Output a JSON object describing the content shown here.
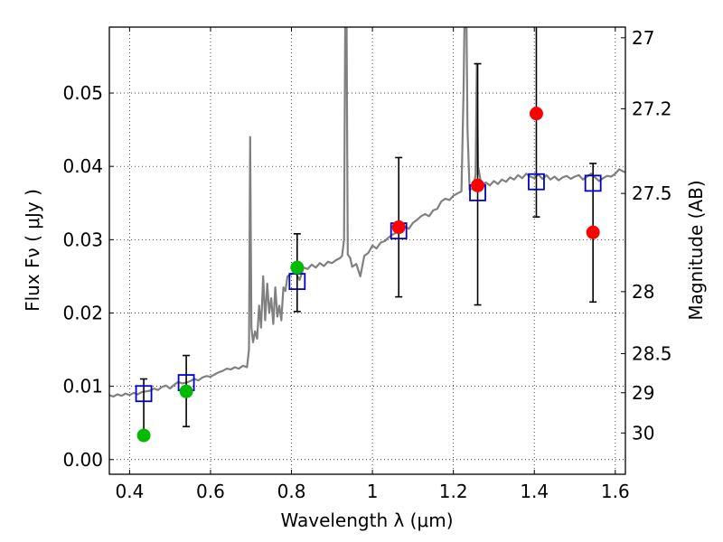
{
  "chart_data": {
    "type": "scatter",
    "title": "",
    "xlabel": "Wavelength  λ (μm)",
    "ylabel": "Flux  Fν  ( μJy )",
    "ylabel_right": "Magnitude (AB)",
    "xlim": [
      0.35,
      1.625
    ],
    "ylim": [
      -0.002,
      0.059
    ],
    "grid": true,
    "x_ticks": [
      {
        "value": 0.4,
        "label": "0.4"
      },
      {
        "value": 0.6,
        "label": "0.6"
      },
      {
        "value": 0.8,
        "label": "0.8"
      },
      {
        "value": 1.0,
        "label": "1"
      },
      {
        "value": 1.2,
        "label": "1.2"
      },
      {
        "value": 1.4,
        "label": "1.4"
      },
      {
        "value": 1.6,
        "label": "1.6"
      }
    ],
    "y_ticks": [
      {
        "value": 0.0,
        "label": "0.00"
      },
      {
        "value": 0.01,
        "label": "0.01"
      },
      {
        "value": 0.02,
        "label": "0.02"
      },
      {
        "value": 0.03,
        "label": "0.03"
      },
      {
        "value": 0.04,
        "label": "0.04"
      },
      {
        "value": 0.05,
        "label": "0.05"
      }
    ],
    "y2_ticks": [
      {
        "value": 27,
        "label": "27"
      },
      {
        "value": 27.2,
        "label": "27.2"
      },
      {
        "value": 27.5,
        "label": "27.5"
      },
      {
        "value": 28,
        "label": "28"
      },
      {
        "value": 28.5,
        "label": "28.5"
      },
      {
        "value": 29,
        "label": "29"
      },
      {
        "value": 30,
        "label": "30"
      }
    ],
    "model_spectrum": {
      "color": "#808080",
      "points": [
        [
          0.35,
          0.0088
        ],
        [
          0.36,
          0.0086
        ],
        [
          0.37,
          0.0089
        ],
        [
          0.38,
          0.0087
        ],
        [
          0.39,
          0.009
        ],
        [
          0.4,
          0.0088
        ],
        [
          0.41,
          0.0091
        ],
        [
          0.42,
          0.0089
        ],
        [
          0.43,
          0.0092
        ],
        [
          0.44,
          0.0093
        ],
        [
          0.45,
          0.0094
        ],
        [
          0.46,
          0.0097
        ],
        [
          0.47,
          0.0095
        ],
        [
          0.48,
          0.0099
        ],
        [
          0.49,
          0.0101
        ],
        [
          0.5,
          0.0097
        ],
        [
          0.51,
          0.0102
        ],
        [
          0.52,
          0.0106
        ],
        [
          0.53,
          0.0104
        ],
        [
          0.54,
          0.0105
        ],
        [
          0.55,
          0.0107
        ],
        [
          0.56,
          0.011
        ],
        [
          0.57,
          0.0108
        ],
        [
          0.58,
          0.0112
        ],
        [
          0.59,
          0.0114
        ],
        [
          0.6,
          0.0113
        ],
        [
          0.61,
          0.0116
        ],
        [
          0.62,
          0.0119
        ],
        [
          0.63,
          0.0121
        ],
        [
          0.64,
          0.0124
        ],
        [
          0.65,
          0.0123
        ],
        [
          0.66,
          0.0126
        ],
        [
          0.67,
          0.0124
        ],
        [
          0.68,
          0.0128
        ],
        [
          0.69,
          0.0126
        ],
        [
          0.695,
          0.015
        ],
        [
          0.698,
          0.044
        ],
        [
          0.701,
          0.018
        ],
        [
          0.705,
          0.016
        ],
        [
          0.71,
          0.0175
        ],
        [
          0.715,
          0.0165
        ],
        [
          0.72,
          0.021
        ],
        [
          0.725,
          0.018
        ],
        [
          0.73,
          0.025
        ],
        [
          0.735,
          0.019
        ],
        [
          0.74,
          0.024
        ],
        [
          0.745,
          0.02
        ],
        [
          0.75,
          0.022
        ],
        [
          0.755,
          0.0185
        ],
        [
          0.76,
          0.0235
        ],
        [
          0.765,
          0.0195
        ],
        [
          0.77,
          0.021
        ],
        [
          0.775,
          0.019
        ],
        [
          0.78,
          0.0235
        ],
        [
          0.785,
          0.023
        ],
        [
          0.79,
          0.025
        ],
        [
          0.8,
          0.0253
        ],
        [
          0.81,
          0.0255
        ],
        [
          0.82,
          0.0245
        ],
        [
          0.83,
          0.0262
        ],
        [
          0.84,
          0.026
        ],
        [
          0.85,
          0.0266
        ],
        [
          0.86,
          0.0262
        ],
        [
          0.87,
          0.0268
        ],
        [
          0.88,
          0.0264
        ],
        [
          0.89,
          0.027
        ],
        [
          0.9,
          0.0268
        ],
        [
          0.91,
          0.0272
        ],
        [
          0.92,
          0.0275
        ],
        [
          0.925,
          0.0278
        ],
        [
          0.93,
          0.03
        ],
        [
          0.933,
          0.062
        ],
        [
          0.936,
          0.062
        ],
        [
          0.939,
          0.028
        ],
        [
          0.945,
          0.0275
        ],
        [
          0.95,
          0.0263
        ],
        [
          0.96,
          0.0267
        ],
        [
          0.97,
          0.025
        ],
        [
          0.98,
          0.0278
        ],
        [
          0.99,
          0.0282
        ],
        [
          1.0,
          0.0292
        ],
        [
          1.01,
          0.0288
        ],
        [
          1.02,
          0.0296
        ],
        [
          1.03,
          0.0298
        ],
        [
          1.04,
          0.0303
        ],
        [
          1.05,
          0.0307
        ],
        [
          1.06,
          0.031
        ],
        [
          1.07,
          0.0314
        ],
        [
          1.08,
          0.0318
        ],
        [
          1.09,
          0.0315
        ],
        [
          1.1,
          0.0323
        ],
        [
          1.11,
          0.0327
        ],
        [
          1.12,
          0.0332
        ],
        [
          1.13,
          0.0335
        ],
        [
          1.14,
          0.0332
        ],
        [
          1.15,
          0.034
        ],
        [
          1.16,
          0.0342
        ],
        [
          1.17,
          0.0352
        ],
        [
          1.18,
          0.0356
        ],
        [
          1.19,
          0.0354
        ],
        [
          1.2,
          0.036
        ],
        [
          1.21,
          0.0363
        ],
        [
          1.22,
          0.0366
        ],
        [
          1.225,
          0.05
        ],
        [
          1.228,
          0.062
        ],
        [
          1.232,
          0.062
        ],
        [
          1.235,
          0.045
        ],
        [
          1.24,
          0.0368
        ],
        [
          1.25,
          0.037
        ],
        [
          1.255,
          0.039
        ],
        [
          1.258,
          0.054
        ],
        [
          1.261,
          0.04
        ],
        [
          1.27,
          0.0372
        ],
        [
          1.28,
          0.0378
        ],
        [
          1.29,
          0.0374
        ],
        [
          1.3,
          0.038
        ],
        [
          1.31,
          0.0376
        ],
        [
          1.32,
          0.0382
        ],
        [
          1.33,
          0.0379
        ],
        [
          1.34,
          0.0385
        ],
        [
          1.35,
          0.0382
        ],
        [
          1.36,
          0.0388
        ],
        [
          1.37,
          0.0384
        ],
        [
          1.38,
          0.039
        ],
        [
          1.39,
          0.0386
        ],
        [
          1.4,
          0.0384
        ],
        [
          1.41,
          0.0389
        ],
        [
          1.42,
          0.0383
        ],
        [
          1.43,
          0.0388
        ],
        [
          1.44,
          0.0382
        ],
        [
          1.45,
          0.0386
        ],
        [
          1.46,
          0.0381
        ],
        [
          1.47,
          0.0385
        ],
        [
          1.48,
          0.0387
        ],
        [
          1.49,
          0.0383
        ],
        [
          1.5,
          0.0386
        ],
        [
          1.51,
          0.0388
        ],
        [
          1.52,
          0.0382
        ],
        [
          1.53,
          0.0386
        ],
        [
          1.54,
          0.039
        ],
        [
          1.55,
          0.0385
        ],
        [
          1.56,
          0.038
        ],
        [
          1.57,
          0.0384
        ],
        [
          1.58,
          0.0387
        ],
        [
          1.59,
          0.0386
        ],
        [
          1.6,
          0.039
        ],
        [
          1.61,
          0.0396
        ],
        [
          1.62,
          0.0393
        ],
        [
          1.625,
          0.0392
        ]
      ]
    },
    "model_photometry": {
      "marker": "open-square",
      "color": "#0000cc",
      "points": [
        {
          "x": 0.435,
          "y": 0.009
        },
        {
          "x": 0.54,
          "y": 0.0105
        },
        {
          "x": 0.814,
          "y": 0.0243
        },
        {
          "x": 1.065,
          "y": 0.0312
        },
        {
          "x": 1.26,
          "y": 0.0364
        },
        {
          "x": 1.405,
          "y": 0.0379
        },
        {
          "x": 1.545,
          "y": 0.0377
        }
      ]
    },
    "observed": [
      {
        "x": 0.435,
        "y": 0.0033,
        "err_low": 0.0033,
        "err_high": 0.011,
        "color": "#00bb00"
      },
      {
        "x": 0.54,
        "y": 0.0093,
        "err_low": 0.0045,
        "err_high": 0.0142,
        "color": "#00bb00"
      },
      {
        "x": 0.814,
        "y": 0.0262,
        "err_low": 0.0202,
        "err_high": 0.0308,
        "color": "#00bb00"
      },
      {
        "x": 1.065,
        "y": 0.0317,
        "err_low": 0.0222,
        "err_high": 0.0412,
        "color": "#ff0000"
      },
      {
        "x": 1.26,
        "y": 0.0374,
        "err_low": 0.0211,
        "err_high": 0.054,
        "color": "#ff0000"
      },
      {
        "x": 1.405,
        "y": 0.0472,
        "err_low": 0.0331,
        "err_high": 0.061,
        "color": "#ff0000"
      },
      {
        "x": 1.545,
        "y": 0.031,
        "err_low": 0.0215,
        "err_high": 0.0404,
        "color": "#ff0000"
      }
    ]
  }
}
